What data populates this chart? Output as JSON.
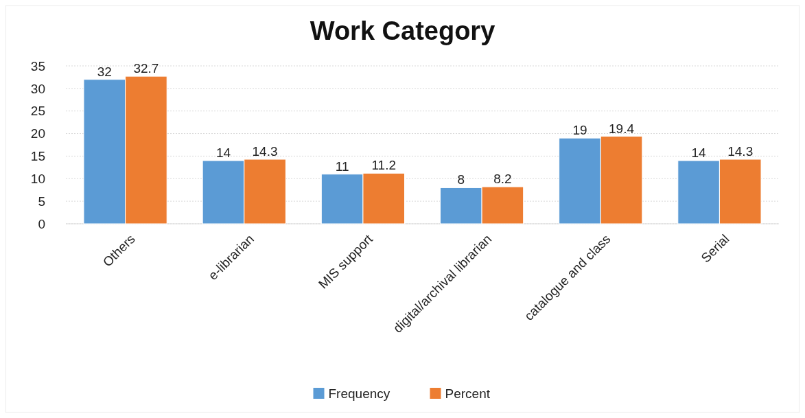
{
  "chart_data": {
    "type": "bar",
    "title": "Work Category",
    "categories": [
      "Others",
      "e-librarian",
      "MIS support",
      "digital/archival librarian",
      "catalogue and class",
      "Serial"
    ],
    "series": [
      {
        "name": "Frequency",
        "color": "#5b9bd5",
        "values": [
          32,
          14,
          11,
          8,
          19,
          14
        ]
      },
      {
        "name": "Percent",
        "color": "#ed7d31",
        "values": [
          32.7,
          14.3,
          11.2,
          8.2,
          19.4,
          14.3
        ]
      }
    ],
    "ylim": [
      0,
      35
    ],
    "yticks": [
      0,
      5,
      10,
      15,
      20,
      25,
      30,
      35
    ],
    "grid": "y",
    "legend": "bottom",
    "data_labels": true
  }
}
